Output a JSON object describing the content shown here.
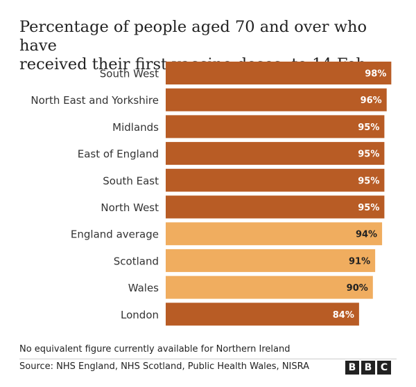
{
  "title_line1": "Percentage of people aged 70 and over who have",
  "title_line2": "received their first vaccine doses, to 14 Feb",
  "footnote": "No equivalent figure currently available for Northern Ireland",
  "source": "Source: NHS England, NHS Scotland, Public Health Wales, NISRA",
  "logo": {
    "letters": [
      "B",
      "B",
      "C"
    ]
  },
  "colors": {
    "dark": "#b85c25",
    "light": "#f0ad5f",
    "label_on_dark": "#ffffff",
    "label_on_light": "#222222"
  },
  "chart_data": {
    "type": "bar",
    "orientation": "horizontal",
    "categories": [
      "South West",
      "North East and Yorkshire",
      "Midlands",
      "East of England",
      "South East",
      "North West",
      "England average",
      "Scotland",
      "Wales",
      "London"
    ],
    "values": [
      98,
      96,
      95,
      95,
      95,
      95,
      94,
      91,
      90,
      84
    ],
    "value_labels": [
      "98%",
      "96%",
      "95%",
      "95%",
      "95%",
      "95%",
      "94%",
      "91%",
      "90%",
      "84%"
    ],
    "highlight": [
      false,
      false,
      false,
      false,
      false,
      false,
      true,
      true,
      true,
      false
    ],
    "xlim": [
      0,
      100
    ],
    "grid": false,
    "legend": false
  }
}
